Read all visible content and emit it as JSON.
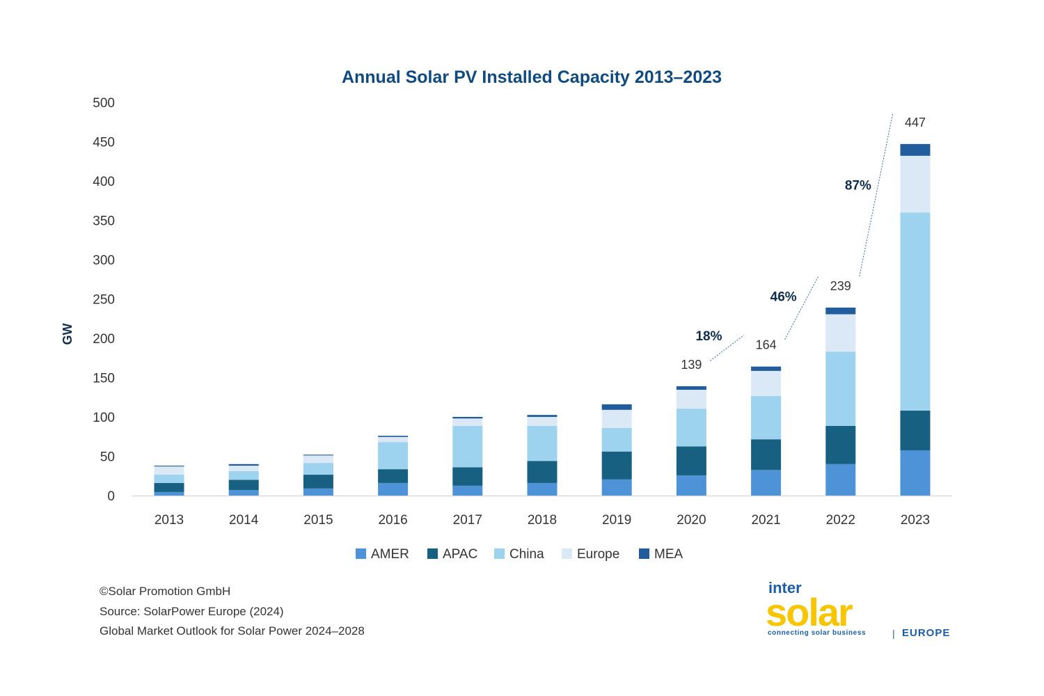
{
  "chart_data": {
    "type": "bar",
    "stacked": true,
    "title": "Annual Solar PV Installed Capacity 2013–2023",
    "xlabel": "",
    "ylabel": "GW",
    "ylim": [
      0,
      500
    ],
    "yticks": [
      0,
      50,
      100,
      150,
      200,
      250,
      300,
      350,
      400,
      450,
      500
    ],
    "grid": false,
    "legend_position": "bottom",
    "categories": [
      "2013",
      "2014",
      "2015",
      "2016",
      "2017",
      "2018",
      "2019",
      "2020",
      "2021",
      "2022",
      "2023"
    ],
    "series": [
      {
        "name": "AMER",
        "color": "#4e93d8",
        "values": [
          4.5,
          7,
          9,
          16,
          12.5,
          16,
          20.5,
          25.5,
          32.5,
          40,
          57.5
        ]
      },
      {
        "name": "APAC",
        "color": "#176082",
        "values": [
          11.5,
          13,
          17.5,
          17.5,
          23.5,
          28,
          35.5,
          37,
          39,
          48.5,
          50.5
        ]
      },
      {
        "name": "China",
        "color": "#9dd3ee",
        "values": [
          10.5,
          11,
          15,
          34.5,
          52.5,
          44.5,
          30,
          48,
          55,
          94.5,
          252
        ]
      },
      {
        "name": "Europe",
        "color": "#dbe8f5",
        "values": [
          10.5,
          7,
          9.5,
          6.5,
          9.5,
          11.5,
          23,
          24,
          32,
          47.5,
          72
        ]
      },
      {
        "name": "MEA",
        "color": "#215d9c",
        "values": [
          1,
          2,
          1,
          1.5,
          2,
          2.5,
          7,
          4.5,
          5.5,
          8.5,
          15
        ]
      }
    ],
    "total_labels": [
      {
        "category": "2020",
        "value": "139"
      },
      {
        "category": "2021",
        "value": "164"
      },
      {
        "category": "2022",
        "value": "239"
      },
      {
        "category": "2023",
        "value": "447"
      }
    ],
    "growth_annotations": [
      {
        "from": "2020",
        "to": "2021",
        "label": "18%"
      },
      {
        "from": "2021",
        "to": "2022",
        "label": "46%"
      },
      {
        "from": "2022",
        "to": "2023",
        "label": "87%"
      }
    ]
  },
  "footer": {
    "copyright": "©Solar Promotion GmbH",
    "source": "Source: SolarPower Europe (2024)",
    "publication": "Global Market Outlook for Solar Power 2024–2028"
  },
  "logo": {
    "top": "inter",
    "main": "solar",
    "tagline": "connecting solar business",
    "region": "EUROPE"
  },
  "colors": {
    "title": "#0f4a80",
    "text": "#333333",
    "axis": "#d9d9d9"
  }
}
